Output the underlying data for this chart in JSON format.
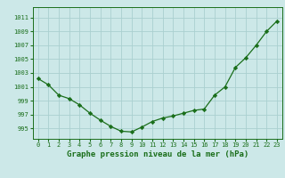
{
  "x": [
    0,
    1,
    2,
    3,
    4,
    5,
    6,
    7,
    8,
    9,
    10,
    11,
    12,
    13,
    14,
    15,
    16,
    17,
    18,
    19,
    20,
    21,
    22,
    23
  ],
  "y": [
    1002.2,
    1001.3,
    999.8,
    999.3,
    998.4,
    997.2,
    996.2,
    995.3,
    994.6,
    994.5,
    995.2,
    996.0,
    996.5,
    996.8,
    997.2,
    997.6,
    997.8,
    999.8,
    1001.0,
    1003.8,
    1005.2,
    1007.0,
    1009.0,
    1010.5
  ],
  "ylim": [
    993.5,
    1012.5
  ],
  "yticks": [
    995,
    997,
    999,
    1001,
    1003,
    1005,
    1007,
    1009,
    1011
  ],
  "xlim": [
    -0.5,
    23.5
  ],
  "xticks": [
    0,
    1,
    2,
    3,
    4,
    5,
    6,
    7,
    8,
    9,
    10,
    11,
    12,
    13,
    14,
    15,
    16,
    17,
    18,
    19,
    20,
    21,
    22,
    23
  ],
  "xlabel": "Graphe pression niveau de la mer (hPa)",
  "line_color": "#1a6e1a",
  "marker": "D",
  "marker_size": 2.2,
  "bg_color": "#cce8e8",
  "grid_color": "#aad0d0",
  "text_color": "#1a6e1a",
  "tick_fontsize": 5.0,
  "xlabel_fontsize": 6.5
}
